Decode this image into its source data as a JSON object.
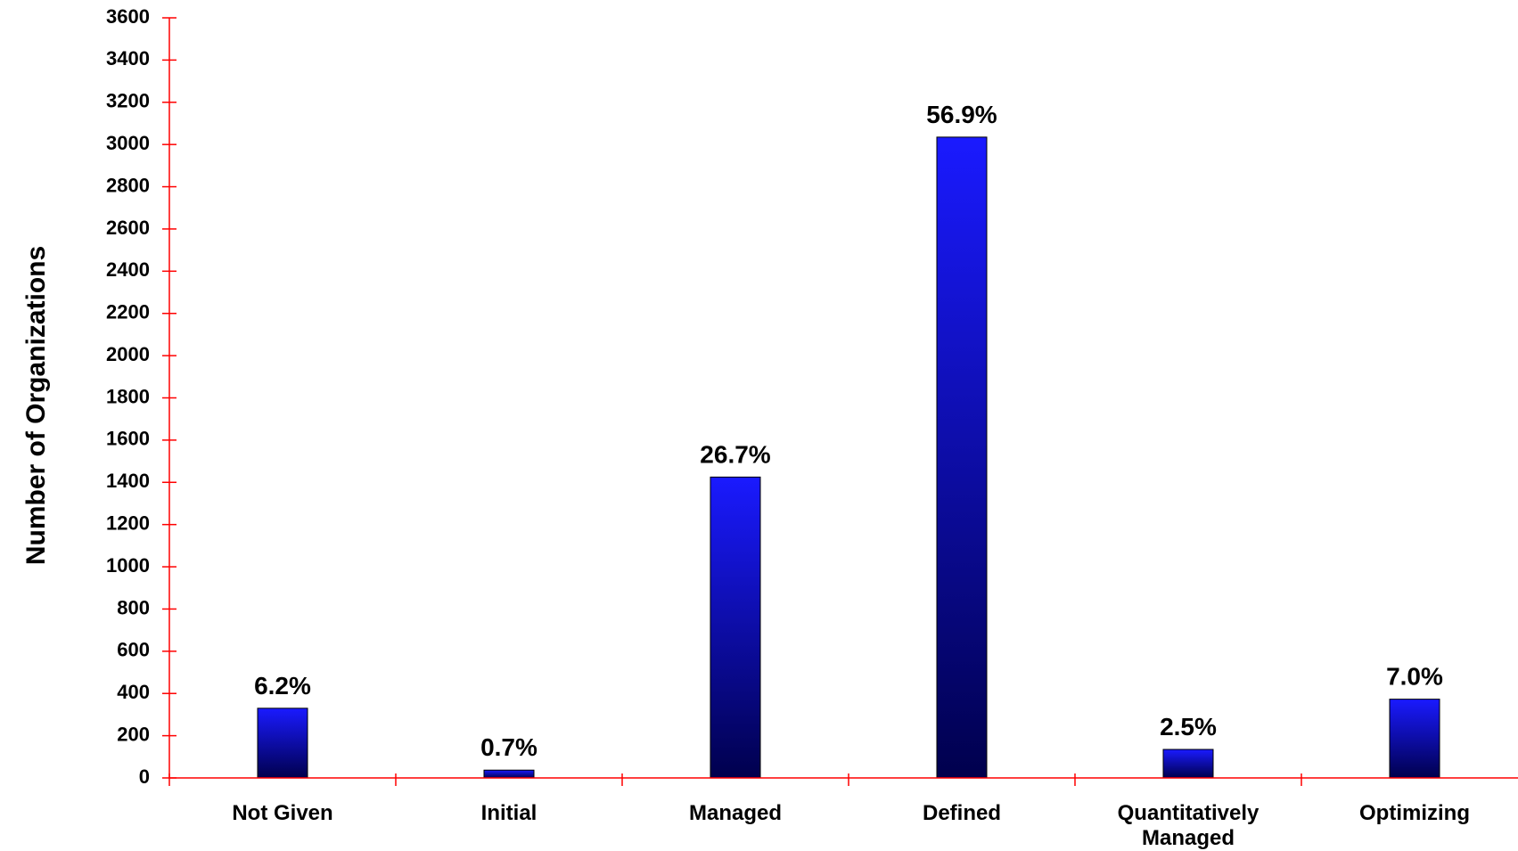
{
  "chart_data": {
    "type": "bar",
    "title": "",
    "xlabel": "",
    "ylabel": "Number of Organizations",
    "ylim": [
      0,
      3600
    ],
    "y_ticks": [
      0,
      200,
      400,
      600,
      800,
      1000,
      1200,
      1400,
      1600,
      1800,
      2000,
      2200,
      2400,
      2600,
      2800,
      3000,
      3200,
      3400,
      3600
    ],
    "categories": [
      "Not Given",
      "Initial",
      "Managed",
      "Defined",
      "Quantitatively Managed",
      "Optimizing"
    ],
    "category_lines": [
      [
        "Not Given"
      ],
      [
        "Initial"
      ],
      [
        "Managed"
      ],
      [
        "Defined"
      ],
      [
        "Quantitatively",
        "Managed"
      ],
      [
        "Optimizing"
      ]
    ],
    "values": [
      330,
      37,
      1425,
      3035,
      135,
      373
    ],
    "data_labels": [
      "6.2%",
      "0.7%",
      "26.7%",
      "56.9%",
      "2.5%",
      "7.0%"
    ],
    "grid": false,
    "legend": "none",
    "colors": {
      "bar_top": "#1a1aff",
      "bar_bottom": "#00004d",
      "bar_edge": "#000000",
      "axis": "#ff0000"
    }
  }
}
